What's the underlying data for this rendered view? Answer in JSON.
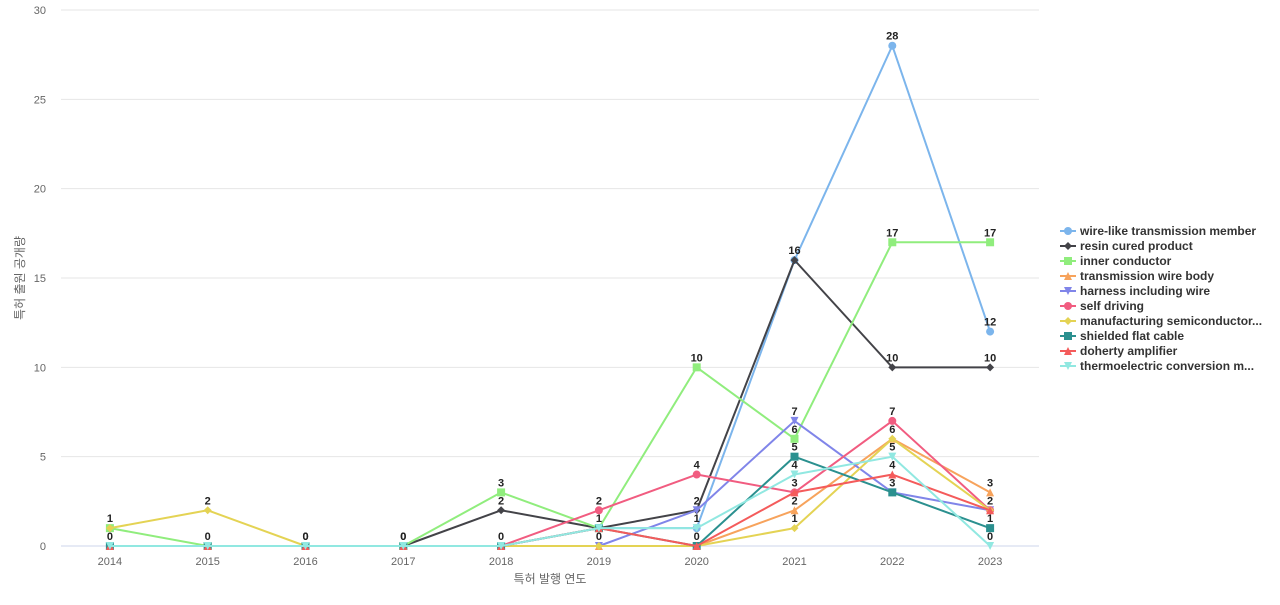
{
  "chart_data": {
    "type": "line",
    "xlabel": "특허 발행 연도",
    "ylabel": "특허 출원 공개량",
    "ylim": [
      0,
      30
    ],
    "yticks": [
      0,
      5,
      10,
      15,
      20,
      25,
      30
    ],
    "grid": true,
    "legend_position": "right",
    "x": [
      "2014",
      "2015",
      "2016",
      "2017",
      "2018",
      "2019",
      "2020",
      "2021",
      "2022",
      "2023"
    ],
    "series": [
      {
        "name": "wire-like transmission member",
        "color": "#7cb5ec",
        "marker": "circle",
        "values": [
          0,
          0,
          0,
          0,
          0,
          1,
          1,
          16,
          28,
          12
        ],
        "labels": [
          0,
          0,
          0,
          0,
          0,
          null,
          null,
          null,
          28,
          12
        ]
      },
      {
        "name": "resin cured product",
        "color": "#434348",
        "marker": "diamond",
        "values": [
          0,
          0,
          0,
          0,
          2,
          1,
          2,
          16,
          10,
          10
        ],
        "labels": [
          null,
          null,
          null,
          null,
          2,
          null,
          2,
          16,
          10,
          10
        ]
      },
      {
        "name": "inner conductor",
        "color": "#90ed7d",
        "marker": "square",
        "values": [
          1,
          0,
          0,
          0,
          3,
          1,
          10,
          6,
          17,
          17
        ],
        "labels": [
          1,
          null,
          null,
          null,
          3,
          1,
          10,
          6,
          17,
          17
        ]
      },
      {
        "name": "transmission wire body",
        "color": "#f7a35c",
        "marker": "triangle",
        "values": [
          0,
          0,
          0,
          0,
          0,
          0,
          0,
          2,
          6,
          3
        ],
        "labels": [
          null,
          null,
          null,
          null,
          null,
          null,
          null,
          2,
          null,
          3
        ]
      },
      {
        "name": "harness including wire",
        "color": "#8085e9",
        "marker": "triangle-down",
        "values": [
          0,
          0,
          0,
          0,
          0,
          0,
          2,
          7,
          3,
          2
        ],
        "labels": [
          null,
          null,
          null,
          null,
          null,
          null,
          null,
          7,
          null,
          2
        ]
      },
      {
        "name": "self driving",
        "color": "#f15c80",
        "marker": "circle",
        "values": [
          0,
          0,
          0,
          0,
          0,
          2,
          4,
          3,
          7,
          2
        ],
        "labels": [
          null,
          null,
          null,
          null,
          null,
          2,
          4,
          3,
          7,
          null
        ]
      },
      {
        "name": "manufacturing semiconductor...",
        "color": "#e4d354",
        "marker": "diamond",
        "values": [
          1,
          2,
          0,
          0,
          0,
          0,
          0,
          1,
          6,
          2
        ],
        "labels": [
          null,
          2,
          0,
          0,
          null,
          0,
          null,
          1,
          6,
          null
        ]
      },
      {
        "name": "shielded flat cable",
        "color": "#2b908f",
        "marker": "square",
        "values": [
          0,
          0,
          0,
          0,
          0,
          1,
          0,
          5,
          3,
          1
        ],
        "labels": [
          null,
          null,
          null,
          null,
          null,
          null,
          0,
          5,
          3,
          1
        ]
      },
      {
        "name": "doherty amplifier",
        "color": "#f45b5b",
        "marker": "triangle",
        "values": [
          0,
          0,
          0,
          0,
          0,
          1,
          0,
          3,
          4,
          2
        ],
        "labels": [
          null,
          null,
          null,
          null,
          null,
          null,
          null,
          null,
          4,
          null
        ]
      },
      {
        "name": "thermoelectric conversion m...",
        "color": "#91e8e1",
        "marker": "triangle-down",
        "values": [
          0,
          0,
          0,
          0,
          0,
          1,
          1,
          4,
          5,
          0
        ],
        "labels": [
          null,
          null,
          null,
          null,
          null,
          null,
          1,
          4,
          5,
          0
        ]
      }
    ]
  }
}
